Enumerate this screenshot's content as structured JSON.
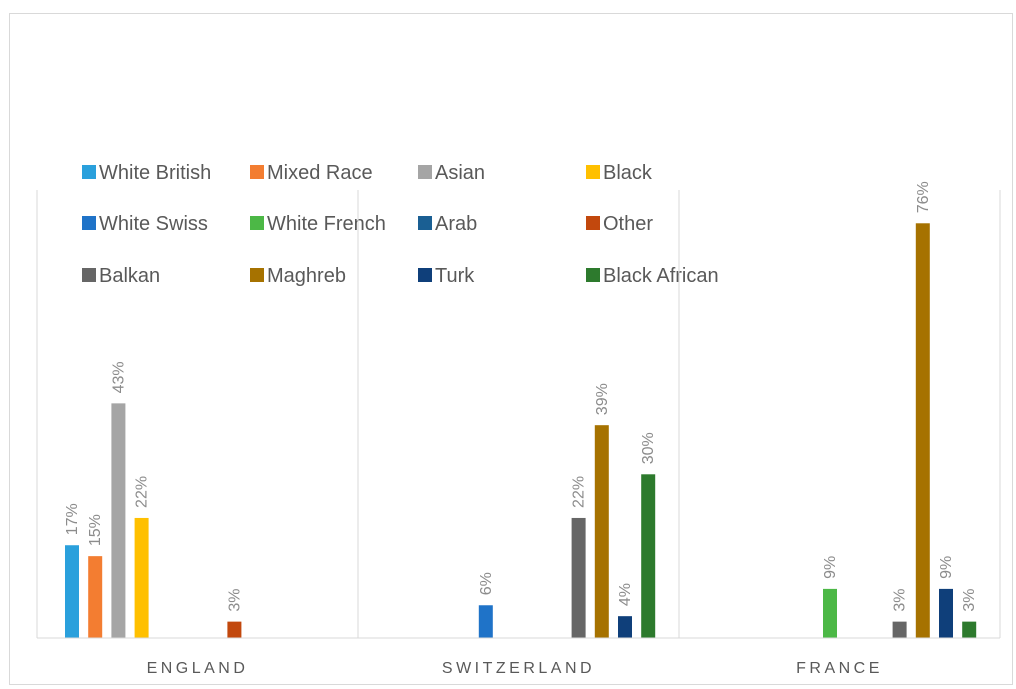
{
  "chart_data": {
    "type": "bar",
    "categories": [
      "ENGLAND",
      "SWITZERLAND",
      "FRANCE"
    ],
    "series": [
      {
        "name": "White British",
        "color": "#2aa0dc",
        "values": [
          17,
          null,
          null
        ]
      },
      {
        "name": "Mixed Race",
        "color": "#f37d31",
        "values": [
          15,
          null,
          null
        ]
      },
      {
        "name": "Asian",
        "color": "#a5a5a5",
        "values": [
          43,
          null,
          null
        ]
      },
      {
        "name": "Black",
        "color": "#ffc000",
        "values": [
          22,
          null,
          null
        ]
      },
      {
        "name": "White Swiss",
        "color": "#1f73c8",
        "values": [
          null,
          6,
          null
        ]
      },
      {
        "name": "White French",
        "color": "#4cb846",
        "values": [
          null,
          null,
          9
        ]
      },
      {
        "name": "Arab",
        "color": "#1a5f93",
        "values": [
          null,
          null,
          null
        ]
      },
      {
        "name": "Other",
        "color": "#c2480d",
        "values": [
          3,
          null,
          null
        ]
      },
      {
        "name": "Balkan",
        "color": "#666666",
        "values": [
          null,
          22,
          3
        ]
      },
      {
        "name": "Maghreb",
        "color": "#a67200",
        "values": [
          null,
          39,
          76
        ]
      },
      {
        "name": "Turk",
        "color": "#0f3f7a",
        "values": [
          null,
          4,
          9
        ]
      },
      {
        "name": "Black African",
        "color": "#2d7a2d",
        "values": [
          null,
          30,
          3
        ]
      }
    ],
    "value_suffix": "%",
    "ylim": [
      0,
      81
    ],
    "grid": false,
    "legend_position": "top"
  }
}
